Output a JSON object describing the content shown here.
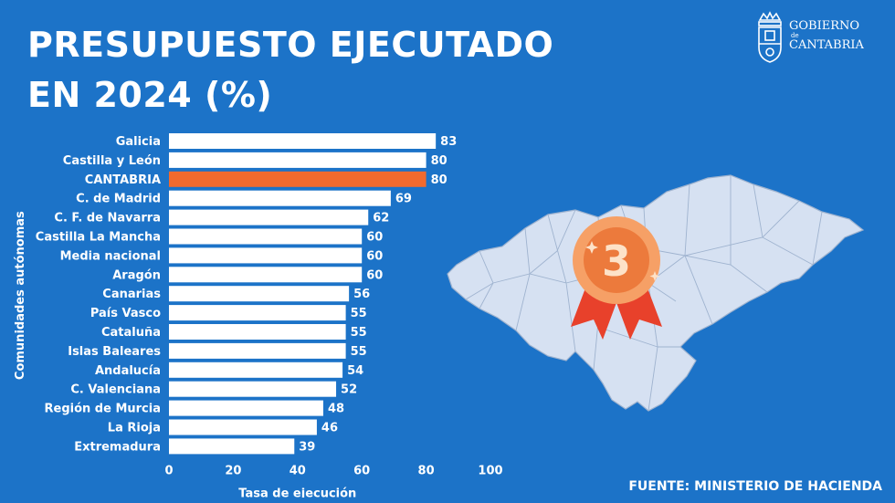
{
  "title_lines": [
    "PRESUPUESTO EJECUTADO",
    "EN 2024 (%)"
  ],
  "logo": {
    "line1": "GOBIERNO",
    "de": "de",
    "line2": "CANTABRIA"
  },
  "source": "FUENTE: MINISTERIO DE HACIENDA",
  "badge_number": "3",
  "colors": {
    "background": "#1c73c8",
    "bar": "#ffffff",
    "highlight_bar": "#f26a2e",
    "map_fill": "#d6e1f2",
    "badge": "#f07a3c"
  },
  "chart_data": {
    "type": "bar",
    "orientation": "horizontal",
    "title": "PRESUPUESTO EJECUTADO EN 2024 (%)",
    "xlabel": "Tasa de ejecución",
    "ylabel": "Comunidades autónomas",
    "xlim": [
      0,
      100
    ],
    "xticks": [
      "0",
      "20",
      "40",
      "60",
      "80",
      "100"
    ],
    "categories": [
      "Galicia",
      "Castilla y León",
      "CANTABRIA",
      "C. de Madrid",
      "C. F. de Navarra",
      "Castilla La Mancha",
      "Media nacional",
      "Aragón",
      "Canarias",
      "País Vasco",
      "Cataluña",
      "Islas Baleares",
      "Andalucía",
      "C. Valenciana",
      "Región de Murcia",
      "La Rioja",
      "Extremadura"
    ],
    "values": [
      83,
      80,
      80,
      69,
      62,
      60,
      60,
      60,
      56,
      55,
      55,
      55,
      54,
      52,
      48,
      46,
      39
    ],
    "highlight": "CANTABRIA",
    "grid": false
  }
}
